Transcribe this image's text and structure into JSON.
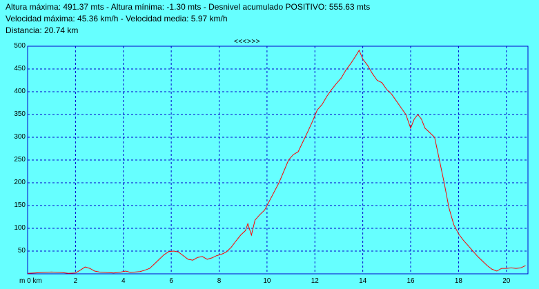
{
  "header": {
    "line1": "Altura máxima: 491.37 mts - Altura mínima: -1.30 mts - Desnivel acumulado POSITIVO: 555.63 mts",
    "line2": "Velocidad máxima: 45.36 km/h - Velocidad media: 5.97 km/h",
    "line3": "Distancia: 20.74 km"
  },
  "nav_label": "<<<>>>",
  "colors": {
    "background": "#66ffff",
    "axes": "#0000cc",
    "grid": "#0000cc",
    "line": "#ff0000"
  },
  "chart_data": {
    "type": "line",
    "xlabel": "",
    "ylabel": "",
    "x_unit_label": "m 0 km",
    "xlim": [
      0,
      20.9
    ],
    "ylim": [
      0,
      500
    ],
    "grid": true,
    "legend": "none",
    "x_ticks": [
      2,
      4,
      6,
      8,
      10,
      12,
      14,
      16,
      18,
      20
    ],
    "y_ticks": [
      50,
      100,
      150,
      200,
      250,
      300,
      350,
      400,
      450,
      500
    ],
    "series": [
      {
        "x": [
          0,
          0.3,
          0.6,
          1.0,
          1.4,
          1.7,
          2.0,
          2.2,
          2.4,
          2.6,
          2.8,
          3.0,
          3.3,
          3.6,
          3.9,
          4.1,
          4.3,
          4.5,
          4.7,
          4.9,
          5.1,
          5.3,
          5.5,
          5.7,
          5.9,
          6.1,
          6.3,
          6.5,
          6.7,
          6.9,
          7.1,
          7.3,
          7.5,
          7.7,
          7.9,
          8.1,
          8.3,
          8.5,
          8.7,
          8.9,
          9.1,
          9.2,
          9.35,
          9.5,
          9.7,
          9.9,
          10.1,
          10.3,
          10.5,
          10.7,
          10.9,
          11.1,
          11.3,
          11.5,
          11.7,
          11.9,
          12.1,
          12.3,
          12.5,
          12.7,
          12.9,
          13.1,
          13.3,
          13.5,
          13.7,
          13.85,
          14.0,
          14.2,
          14.4,
          14.6,
          14.8,
          15.0,
          15.2,
          15.4,
          15.6,
          15.8,
          16.0,
          16.15,
          16.3,
          16.45,
          16.6,
          16.8,
          17.0,
          17.2,
          17.4,
          17.6,
          17.8,
          18.0,
          18.2,
          18.4,
          18.6,
          18.8,
          19.0,
          19.2,
          19.4,
          19.6,
          19.8,
          20.0,
          20.2,
          20.4,
          20.6,
          20.8
        ],
        "y": [
          1,
          2,
          3,
          4,
          3,
          1,
          2,
          8,
          15,
          12,
          6,
          4,
          3,
          2,
          4,
          6,
          3,
          4,
          5,
          8,
          12,
          22,
          32,
          42,
          49,
          50,
          48,
          40,
          32,
          30,
          36,
          38,
          32,
          35,
          40,
          43,
          48,
          58,
          72,
          85,
          95,
          110,
          85,
          118,
          130,
          140,
          160,
          180,
          200,
          225,
          250,
          262,
          268,
          290,
          312,
          335,
          360,
          372,
          390,
          405,
          418,
          430,
          448,
          462,
          478,
          491,
          472,
          458,
          440,
          425,
          420,
          405,
          395,
          380,
          365,
          350,
          320,
          340,
          350,
          340,
          320,
          310,
          300,
          250,
          200,
          145,
          108,
          88,
          74,
          62,
          50,
          38,
          28,
          18,
          10,
          6,
          12,
          12,
          13,
          12,
          13,
          18
        ]
      }
    ]
  }
}
